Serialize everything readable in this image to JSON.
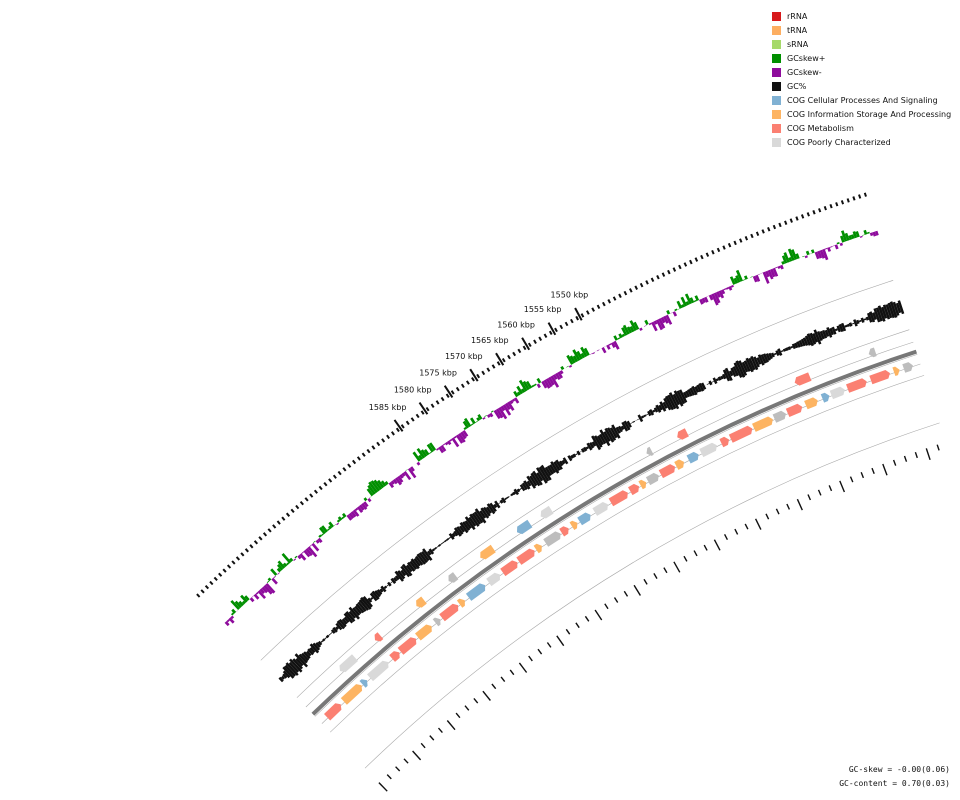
{
  "ticks": [
    {
      "label": "1550 kbp",
      "kbp": 1550
    },
    {
      "label": "1555 kbp",
      "kbp": 1555
    },
    {
      "label": "1560 kbp",
      "kbp": 1560
    },
    {
      "label": "1565 kbp",
      "kbp": 1565
    },
    {
      "label": "1570 kbp",
      "kbp": 1570
    },
    {
      "label": "1575 kbp",
      "kbp": 1575
    },
    {
      "label": "1580 kbp",
      "kbp": 1580
    },
    {
      "label": "1585 kbp",
      "kbp": 1585
    }
  ],
  "legend": [
    {
      "label": "rRNA",
      "color": "#d7191c"
    },
    {
      "label": "tRNA",
      "color": "#fdae61"
    },
    {
      "label": "sRNA",
      "color": "#a6d96a"
    },
    {
      "label": "GCskew+",
      "color": "#008f00"
    },
    {
      "label": "GCskew-",
      "color": "#8e0c9c"
    },
    {
      "label": "GC%",
      "color": "#111111"
    },
    {
      "label": "COG Cellular Processes And Signaling",
      "color": "#80b1d3"
    },
    {
      "label": "COG Information Storage And Processing",
      "color": "#fdb462"
    },
    {
      "label": "COG Metabolism",
      "color": "#fb8072"
    },
    {
      "label": "COG Poorly Characterized",
      "color": "#d9d9d9"
    }
  ],
  "stats": {
    "gc_skew": "GC-skew = -0.00(0.06)",
    "gc_content": "GC-content = 0.70(0.03)"
  }
}
